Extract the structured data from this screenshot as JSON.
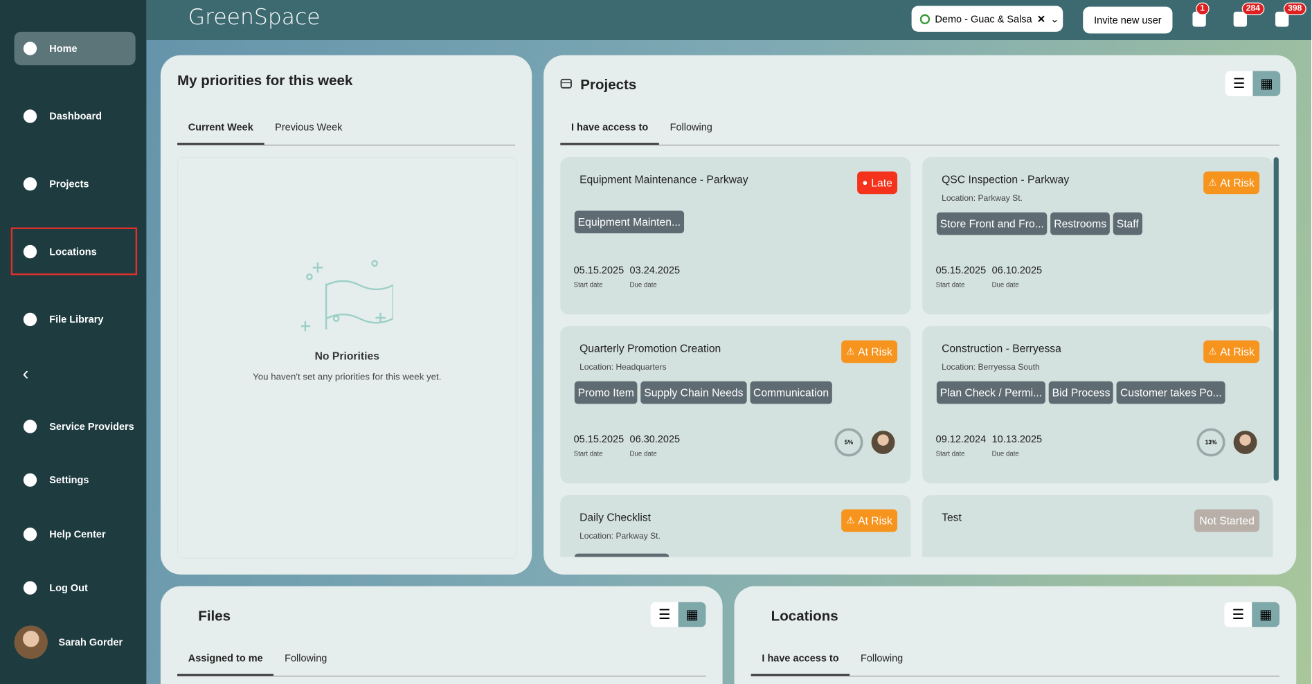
{
  "sidebar": {
    "items": [
      "Home",
      "Dashboard",
      "Projects",
      "Locations",
      "File Library",
      "Service Providers",
      "Settings",
      "Help Center",
      "Log Out"
    ],
    "user": "Sarah Gorder"
  },
  "header": {
    "logo": "GreenSpace",
    "org": "Demo - Guac & Salsa",
    "invite": "Invite new user",
    "badges": [
      1,
      284,
      398
    ]
  },
  "priorities": {
    "title": "My priorities for this week",
    "tabs": [
      "Current Week",
      "Previous Week"
    ],
    "empty_title": "No Priorities",
    "empty_text": "You haven't set any priorities for this week yet."
  },
  "projects": {
    "title": "Projects",
    "tabs": [
      "I have access to",
      "Following"
    ],
    "start_label": "Start date",
    "due_label": "Due date",
    "cards": [
      {
        "title": "Equipment Maintenance - Parkway",
        "status": "Late",
        "tags": [
          "Equipment Mainten..."
        ],
        "start": "05.15.2025",
        "due": "03.24.2025"
      },
      {
        "title": "QSC Inspection - Parkway",
        "location": "Location: Parkway St.",
        "status": "At Risk",
        "tags": [
          "Store Front and Fro...",
          "Restrooms",
          "Staff"
        ],
        "start": "05.15.2025",
        "due": "06.10.2025"
      },
      {
        "title": "Quarterly Promotion Creation",
        "location": "Location: Headquarters",
        "status": "At Risk",
        "tags": [
          "Promo Item",
          "Supply Chain Needs",
          "Communication"
        ],
        "start": "05.15.2025",
        "due": "06.30.2025",
        "progress": "5%"
      },
      {
        "title": "Construction - Berryessa",
        "location": "Location: Berryessa South",
        "status": "At Risk",
        "tags": [
          "Plan Check / Permi...",
          "Bid Process",
          "Customer takes Po..."
        ],
        "start": "09.12.2024",
        "due": "10.13.2025",
        "progress": "13%"
      },
      {
        "title": "Daily Checklist",
        "location": "Location: Parkway St.",
        "status": "At Risk"
      },
      {
        "title": "Test",
        "status": "Not Started"
      }
    ]
  },
  "files": {
    "title": "Files",
    "tabs": [
      "Assigned to me",
      "Following"
    ]
  },
  "locations": {
    "title": "Locations",
    "tabs": [
      "I have access to",
      "Following"
    ]
  }
}
